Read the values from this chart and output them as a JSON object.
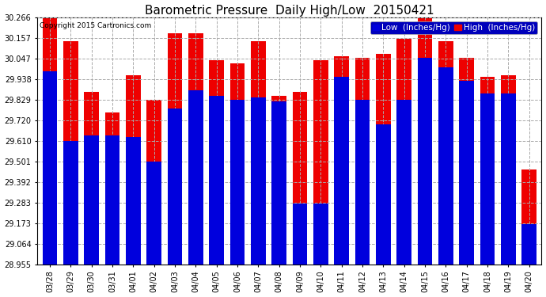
{
  "title": "Barometric Pressure  Daily High/Low  20150421",
  "copyright": "Copyright 2015 Cartronics.com",
  "legend_low": "Low  (Inches/Hg)",
  "legend_high": "High  (Inches/Hg)",
  "dates": [
    "03/28",
    "03/29",
    "03/30",
    "03/31",
    "04/01",
    "04/02",
    "04/03",
    "04/04",
    "04/05",
    "04/06",
    "04/07",
    "04/08",
    "04/09",
    "04/10",
    "04/11",
    "04/12",
    "04/13",
    "04/14",
    "04/15",
    "04/16",
    "04/17",
    "04/18",
    "04/19",
    "04/20"
  ],
  "low": [
    29.98,
    29.61,
    29.64,
    29.64,
    29.63,
    29.5,
    29.78,
    29.88,
    29.85,
    29.83,
    29.84,
    29.82,
    29.28,
    29.28,
    29.95,
    29.83,
    29.7,
    29.83,
    30.05,
    30.0,
    29.93,
    29.86,
    29.86,
    29.17
  ],
  "high": [
    30.27,
    30.14,
    29.87,
    29.76,
    29.96,
    29.83,
    30.18,
    30.18,
    30.04,
    30.02,
    30.14,
    29.85,
    29.87,
    30.04,
    30.06,
    30.05,
    30.07,
    30.15,
    30.27,
    30.14,
    30.05,
    29.95,
    29.96,
    29.46
  ],
  "ylim_min": 28.955,
  "ylim_max": 30.266,
  "yticks": [
    28.955,
    29.064,
    29.173,
    29.283,
    29.392,
    29.501,
    29.61,
    29.72,
    29.829,
    29.938,
    30.047,
    30.157,
    30.266
  ],
  "bar_width": 0.7,
  "low_color": "#0000dd",
  "high_color": "#ee0000",
  "bg_color": "#ffffff",
  "grid_color": "#aaaaaa",
  "title_fontsize": 11,
  "tick_fontsize": 7,
  "legend_fontsize": 7.5
}
